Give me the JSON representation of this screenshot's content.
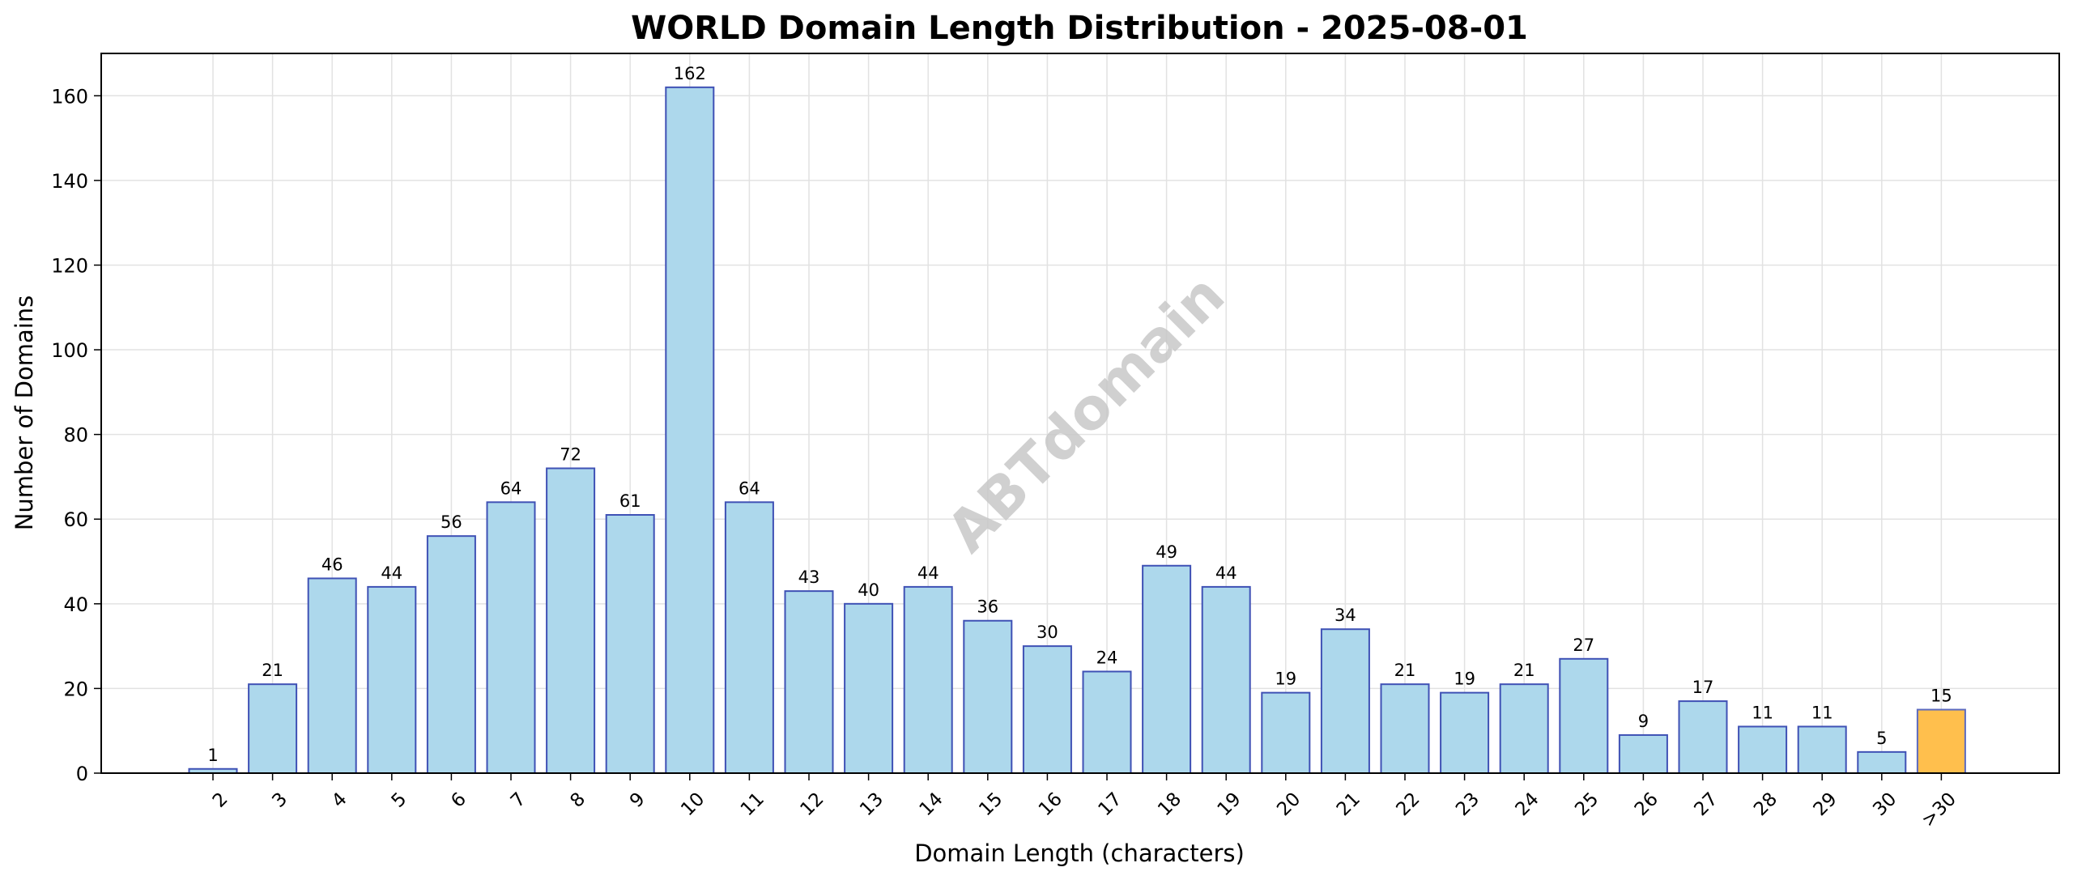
{
  "chart_data": {
    "type": "bar",
    "title": "WORLD Domain Length Distribution - 2025-08-01",
    "xlabel": "Domain Length (characters)",
    "ylabel": "Number of Domains",
    "watermark": "ABTdomain",
    "categories": [
      "2",
      "3",
      "4",
      "5",
      "6",
      "7",
      "8",
      "9",
      "10",
      "11",
      "12",
      "13",
      "14",
      "15",
      "16",
      "17",
      "18",
      "19",
      "20",
      "21",
      "22",
      "23",
      "24",
      "25",
      "26",
      "27",
      "28",
      "29",
      "30",
      ">30"
    ],
    "values": [
      1,
      21,
      46,
      44,
      56,
      64,
      72,
      61,
      162,
      64,
      43,
      40,
      44,
      36,
      30,
      24,
      49,
      44,
      19,
      34,
      21,
      19,
      21,
      27,
      9,
      17,
      11,
      11,
      5,
      15
    ],
    "ylim": [
      0,
      170
    ],
    "yticks": [
      0,
      20,
      40,
      60,
      80,
      100,
      120,
      140,
      160
    ],
    "grid": true,
    "legend": "none",
    "colors": {
      "bar": "#add8ec",
      "bar_edge": "#3f51b5",
      "highlight_bar": "#ffbf4d",
      "highlight_edge": "#5c6bc0",
      "grid": "#e2e2e2",
      "watermark": "#c8c8c8"
    },
    "highlight_category": ">30"
  }
}
